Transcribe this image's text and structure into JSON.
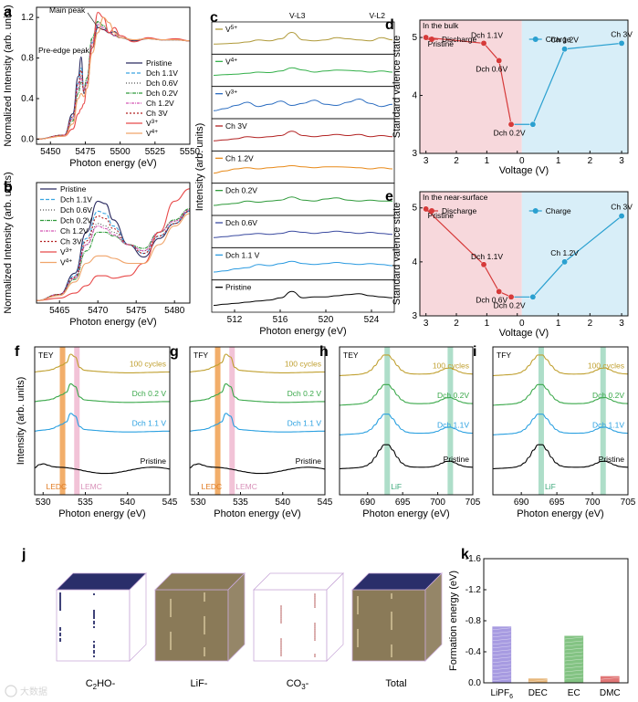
{
  "panel_labels": [
    "a",
    "b",
    "c",
    "d",
    "e",
    "f",
    "g",
    "h",
    "i",
    "j",
    "k"
  ],
  "chart_data": [
    {
      "id": "a",
      "type": "line",
      "xlabel": "Photon energy (eV)",
      "ylabel": "Normalized Intensity (arb. units)",
      "xlim": [
        5440,
        5550
      ],
      "ylim": [
        -0.05,
        1.3
      ],
      "xticks": [
        5450,
        5475,
        5500,
        5525,
        5550
      ],
      "yticks": [
        0.0,
        0.4,
        0.8,
        1.2
      ],
      "annotations": [
        "Main peak",
        "Pre-edge peak"
      ],
      "legend": [
        "Pristine",
        "Dch 1.1V",
        "Dch 0.6V",
        "Dch 0.2V",
        "Ch 1.2V",
        "Ch 3V",
        "V3+",
        "V4+"
      ],
      "series": [
        {
          "name": "Pristine",
          "color": "#2a2a60",
          "dash": "",
          "x": [
            5440,
            5460,
            5466,
            5470,
            5472,
            5474,
            5476,
            5480,
            5484,
            5488,
            5492,
            5496,
            5500,
            5510,
            5520,
            5530,
            5540,
            5550
          ],
          "y": [
            0.0,
            0.04,
            0.25,
            0.62,
            0.81,
            0.45,
            0.5,
            0.9,
            1.1,
            1.08,
            1.05,
            1.06,
            1.0,
            0.97,
            0.99,
            0.98,
            0.98,
            0.97
          ]
        },
        {
          "name": "Dch 1.1V",
          "color": "#3aa5e0",
          "dash": "4,2",
          "x": [
            5440,
            5460,
            5466,
            5470,
            5472,
            5474,
            5476,
            5480,
            5484,
            5488,
            5492,
            5496,
            5500,
            5510,
            5520,
            5530,
            5540,
            5550
          ],
          "y": [
            0.0,
            0.04,
            0.22,
            0.55,
            0.7,
            0.48,
            0.55,
            0.95,
            1.12,
            1.1,
            1.05,
            1.02,
            1.0,
            0.98,
            0.99,
            0.98,
            0.98,
            0.97
          ]
        },
        {
          "name": "Dch 0.6V",
          "color": "#555555",
          "dash": "1,2",
          "x": [
            5440,
            5460,
            5466,
            5470,
            5472,
            5474,
            5476,
            5480,
            5484,
            5488,
            5492,
            5496,
            5500,
            5510,
            5520,
            5530,
            5540,
            5550
          ],
          "y": [
            0.0,
            0.04,
            0.2,
            0.5,
            0.62,
            0.5,
            0.58,
            0.98,
            1.15,
            1.12,
            1.05,
            1.02,
            1.0,
            0.98,
            0.99,
            0.98,
            0.98,
            0.97
          ]
        },
        {
          "name": "Dch 0.2V",
          "color": "#2e9a3a",
          "dash": "4,1,1,1",
          "x": [
            5440,
            5460,
            5466,
            5470,
            5472,
            5474,
            5476,
            5480,
            5484,
            5488,
            5492,
            5496,
            5500,
            5510,
            5520,
            5530,
            5540,
            5550
          ],
          "y": [
            0.0,
            0.04,
            0.18,
            0.45,
            0.56,
            0.5,
            0.6,
            1.0,
            1.16,
            1.12,
            1.05,
            1.02,
            1.0,
            0.98,
            0.99,
            0.98,
            0.98,
            0.97
          ]
        },
        {
          "name": "Ch 1.2V",
          "color": "#d456b5",
          "dash": "3,1,1,1",
          "x": [
            5440,
            5460,
            5466,
            5470,
            5472,
            5474,
            5476,
            5480,
            5484,
            5488,
            5492,
            5496,
            5500,
            5510,
            5520,
            5530,
            5540,
            5550
          ],
          "y": [
            0.0,
            0.04,
            0.2,
            0.5,
            0.6,
            0.48,
            0.56,
            0.96,
            1.13,
            1.1,
            1.05,
            1.02,
            1.0,
            0.98,
            0.99,
            0.98,
            0.98,
            0.97
          ]
        },
        {
          "name": "Ch 3V",
          "color": "#b22222",
          "dash": "2,2",
          "x": [
            5440,
            5460,
            5466,
            5470,
            5472,
            5474,
            5476,
            5480,
            5484,
            5488,
            5492,
            5496,
            5500,
            5510,
            5520,
            5530,
            5540,
            5550
          ],
          "y": [
            0.0,
            0.04,
            0.22,
            0.55,
            0.68,
            0.47,
            0.55,
            0.93,
            1.1,
            1.08,
            1.05,
            1.03,
            1.0,
            0.98,
            0.99,
            0.98,
            0.98,
            0.97
          ]
        },
        {
          "name": "V3+",
          "color": "#e84a4a",
          "dash": "",
          "x": [
            5440,
            5460,
            5466,
            5470,
            5472,
            5474,
            5476,
            5480,
            5484,
            5488,
            5492,
            5496,
            5500,
            5510,
            5520,
            5530,
            5540,
            5550
          ],
          "y": [
            0.0,
            0.03,
            0.1,
            0.25,
            0.3,
            0.35,
            0.5,
            0.9,
            1.25,
            1.2,
            1.05,
            1.1,
            1.02,
            0.96,
            1.0,
            0.98,
            0.99,
            0.97
          ]
        },
        {
          "name": "V4+",
          "color": "#f0a46a",
          "dash": "",
          "x": [
            5440,
            5460,
            5466,
            5470,
            5472,
            5474,
            5476,
            5480,
            5484,
            5488,
            5492,
            5496,
            5500,
            5510,
            5520,
            5530,
            5540,
            5550
          ],
          "y": [
            0.0,
            0.03,
            0.15,
            0.4,
            0.45,
            0.42,
            0.5,
            0.85,
            1.05,
            1.2,
            1.15,
            1.05,
            1.0,
            0.98,
            0.99,
            0.98,
            0.98,
            0.97
          ]
        }
      ]
    },
    {
      "id": "b",
      "type": "line",
      "xlabel": "Photon energy (eV)",
      "ylabel": "Normalized Intensity (arb. units)",
      "xlim": [
        5462,
        5482
      ],
      "ylim": [
        -0.02,
        0.95
      ],
      "xticks": [
        5465,
        5470,
        5475,
        5480
      ],
      "yticks": [],
      "legend": [
        "Pristine",
        "Dch 1.1V",
        "Dch 0.6V",
        "Dch 0.2V",
        "Ch 1.2V",
        "Ch 3V",
        "V3+",
        "V4+"
      ],
      "series": [
        {
          "name": "Pristine",
          "color": "#2a2a60",
          "dash": "",
          "x": [
            5462,
            5465,
            5467,
            5468.5,
            5470,
            5471,
            5472,
            5474,
            5476,
            5478,
            5480,
            5482
          ],
          "y": [
            0.0,
            0.05,
            0.22,
            0.55,
            0.8,
            0.78,
            0.65,
            0.45,
            0.35,
            0.5,
            0.62,
            0.72
          ]
        },
        {
          "name": "Dch 1.1V",
          "color": "#3aa5e0",
          "dash": "4,2",
          "x": [
            5462,
            5465,
            5467,
            5468.5,
            5470,
            5471,
            5472,
            5474,
            5476,
            5478,
            5480,
            5482
          ],
          "y": [
            0.0,
            0.05,
            0.2,
            0.5,
            0.72,
            0.7,
            0.6,
            0.45,
            0.38,
            0.52,
            0.62,
            0.72
          ]
        },
        {
          "name": "Dch 0.6V",
          "color": "#555555",
          "dash": "1,2",
          "x": [
            5462,
            5465,
            5467,
            5468.5,
            5470,
            5471,
            5472,
            5474,
            5476,
            5478,
            5480,
            5482
          ],
          "y": [
            0.0,
            0.05,
            0.18,
            0.45,
            0.62,
            0.6,
            0.55,
            0.45,
            0.4,
            0.55,
            0.64,
            0.73
          ]
        },
        {
          "name": "Dch 0.2V",
          "color": "#2e9a3a",
          "dash": "4,1,1,1",
          "x": [
            5462,
            5465,
            5467,
            5468.5,
            5470,
            5471,
            5472,
            5474,
            5476,
            5478,
            5480,
            5482
          ],
          "y": [
            0.0,
            0.05,
            0.17,
            0.4,
            0.55,
            0.55,
            0.52,
            0.45,
            0.42,
            0.55,
            0.65,
            0.74
          ]
        },
        {
          "name": "Ch 1.2V",
          "color": "#d456b5",
          "dash": "3,1,1,1",
          "x": [
            5462,
            5465,
            5467,
            5468.5,
            5470,
            5471,
            5472,
            5474,
            5476,
            5478,
            5480,
            5482
          ],
          "y": [
            0.0,
            0.05,
            0.18,
            0.45,
            0.6,
            0.58,
            0.53,
            0.45,
            0.4,
            0.55,
            0.64,
            0.73
          ]
        },
        {
          "name": "Ch 3V",
          "color": "#b22222",
          "dash": "2,2",
          "x": [
            5462,
            5465,
            5467,
            5468.5,
            5470,
            5471,
            5472,
            5474,
            5476,
            5478,
            5480,
            5482
          ],
          "y": [
            0.0,
            0.05,
            0.19,
            0.48,
            0.68,
            0.66,
            0.58,
            0.45,
            0.38,
            0.52,
            0.62,
            0.72
          ]
        },
        {
          "name": "V3+",
          "color": "#e84a4a",
          "dash": "",
          "x": [
            5462,
            5465,
            5467,
            5468.5,
            5470,
            5471,
            5472,
            5474,
            5476,
            5478,
            5480,
            5482
          ],
          "y": [
            0.0,
            0.02,
            0.06,
            0.12,
            0.2,
            0.2,
            0.18,
            0.2,
            0.3,
            0.55,
            0.8,
            0.9
          ]
        },
        {
          "name": "V4+",
          "color": "#f0a46a",
          "dash": "",
          "x": [
            5462,
            5465,
            5467,
            5468.5,
            5470,
            5471,
            5472,
            5474,
            5476,
            5478,
            5480,
            5482
          ],
          "y": [
            0.0,
            0.04,
            0.15,
            0.3,
            0.36,
            0.36,
            0.34,
            0.3,
            0.3,
            0.45,
            0.6,
            0.7
          ]
        }
      ]
    },
    {
      "id": "c",
      "type": "line",
      "xlabel": "Photon energy (eV)",
      "ylabel": "Intensity (arb. units)",
      "xlim": [
        510,
        526
      ],
      "xticks": [
        512,
        516,
        520,
        524
      ],
      "annotations": [
        "V-L3",
        "V-L2"
      ],
      "panels": [
        "V5+",
        "V4+",
        "V3+",
        "Ch 3V",
        "Ch 1.2V",
        "Dch 0.2V",
        "Dch 0.6V",
        "Dch 1.1 V",
        "Pristine"
      ],
      "colors": [
        "#b09a3a",
        "#34b04a",
        "#2a6cc0",
        "#b22222",
        "#e88a1a",
        "#2e9a3a",
        "#3a4aa0",
        "#2a9ae0",
        "#000000"
      ]
    },
    {
      "id": "d",
      "type": "line",
      "title": "In the bulk",
      "xlabel": "Voltage (V)",
      "ylabel": "Standard valence state",
      "xlim": [
        3.2,
        -0.2
      ],
      "ylim": [
        3,
        5.3
      ],
      "xticks": [
        3,
        2,
        1,
        0,
        1,
        2,
        3
      ],
      "yticks": [
        3,
        4,
        5
      ],
      "legend": [
        "Discharge",
        "Charge"
      ],
      "series": [
        {
          "name": "Discharge",
          "color": "#d63a3a",
          "points": [
            {
              "label": "Pristine",
              "v": 3.0,
              "y": 5.0
            },
            {
              "label": "Dch 1.1V",
              "v": 1.1,
              "y": 4.9
            },
            {
              "label": "Dch 0.6V",
              "v": 0.6,
              "y": 4.6
            },
            {
              "label": "Dch 0.2V",
              "v": 0.2,
              "y": 3.5
            }
          ]
        },
        {
          "name": "Charge",
          "color": "#2aa0d0",
          "points": [
            {
              "label": "Dch 0.2V",
              "v": 0.2,
              "y": 3.5
            },
            {
              "label": "Ch 1.2V",
              "v": 1.2,
              "y": 4.8
            },
            {
              "label": "Ch 3V",
              "v": 3.0,
              "y": 4.9
            }
          ]
        }
      ]
    },
    {
      "id": "e",
      "type": "line",
      "title": "In the near-surface",
      "xlabel": "Voltage (V)",
      "ylabel": "Standard valence state",
      "xlim": [
        3.2,
        -0.2
      ],
      "ylim": [
        3,
        5.3
      ],
      "xticks": [
        3,
        2,
        1,
        0,
        1,
        2,
        3
      ],
      "yticks": [
        3,
        4,
        5
      ],
      "legend": [
        "Discharge",
        "Charge"
      ],
      "series": [
        {
          "name": "Discharge",
          "color": "#d63a3a",
          "points": [
            {
              "label": "Pristine",
              "v": 3.0,
              "y": 4.98
            },
            {
              "label": "Dch 1.1V",
              "v": 1.1,
              "y": 3.95
            },
            {
              "label": "Dch 0.6V",
              "v": 0.6,
              "y": 3.45
            },
            {
              "label": "Dch 0.2V",
              "v": 0.2,
              "y": 3.35
            }
          ]
        },
        {
          "name": "Charge",
          "color": "#2aa0d0",
          "points": [
            {
              "label": "Dch 0.2V",
              "v": 0.2,
              "y": 3.35
            },
            {
              "label": "Ch 1.2V",
              "v": 1.2,
              "y": 4.0
            },
            {
              "label": "Ch 3V",
              "v": 3.0,
              "y": 4.85
            }
          ]
        }
      ]
    },
    {
      "id": "f",
      "type": "line",
      "tag": "TEY",
      "xlabel": "Photon energy (eV)",
      "ylabel": "Intensity (arb. units)",
      "xlim": [
        529,
        545
      ],
      "xticks": [
        530,
        535,
        540,
        545
      ],
      "bands": [
        {
          "label": "LEDC",
          "x": 532.3,
          "color": "#f0a050"
        },
        {
          "label": "LEMC",
          "x": 534.0,
          "color": "#f0b8d0"
        }
      ],
      "series": [
        "Pristine",
        "Dch 1.1 V",
        "Dch 0.2 V",
        "100 cycles"
      ]
    },
    {
      "id": "g",
      "type": "line",
      "tag": "TFY",
      "xlabel": "Photon energy (eV)",
      "xlim": [
        529,
        545
      ],
      "xticks": [
        530,
        535,
        540,
        545
      ],
      "bands": [
        {
          "label": "LEDC",
          "x": 532.3,
          "color": "#f0a050"
        },
        {
          "label": "LEMC",
          "x": 534.0,
          "color": "#f0b8d0"
        }
      ],
      "series": [
        "Pristine",
        "Dch 1.1 V",
        "Dch 0.2 V",
        "100 cycles"
      ]
    },
    {
      "id": "h",
      "type": "line",
      "tag": "TEY",
      "xlabel": "Photon energy (eV)",
      "xlim": [
        686,
        705
      ],
      "xticks": [
        690,
        695,
        700,
        705
      ],
      "bands": [
        {
          "label": "LiF",
          "x": 692.8,
          "color": "#a0d8c0"
        },
        {
          "label": "",
          "x": 701.8,
          "color": "#a0d8c0"
        }
      ],
      "series": [
        "Pristine",
        "Dch 1.1V",
        "Dch 0.2V",
        "100 cycles"
      ]
    },
    {
      "id": "i",
      "type": "line",
      "tag": "TFY",
      "xlabel": "Photon energy (eV)",
      "xlim": [
        686,
        705
      ],
      "xticks": [
        690,
        695,
        700,
        705
      ],
      "bands": [
        {
          "label": "LiF",
          "x": 692.8,
          "color": "#a0d8c0"
        },
        {
          "label": "",
          "x": 701.5,
          "color": "#a0d8c0"
        }
      ],
      "series": [
        "Pristine",
        "Dch 1.1V",
        "Dch 0.2V",
        "100 cycles"
      ]
    },
    {
      "id": "k",
      "type": "bar",
      "ylabel": "Formation energy (eV)",
      "ylim": [
        0,
        -1.6
      ],
      "yticks": [
        0.0,
        -0.4,
        -0.8,
        -1.2,
        -1.6
      ],
      "categories": [
        "LiPF6",
        "DEC",
        "EC",
        "DMC"
      ],
      "values": [
        -0.72,
        -0.05,
        -0.6,
        -0.08
      ],
      "colors": [
        "#8a7ad8",
        "#e0a050",
        "#5ab05a",
        "#d84a4a"
      ]
    }
  ],
  "panel_j": {
    "labels": [
      "C2HO-",
      "LiF-",
      "CO3-",
      "Total"
    ]
  },
  "watermark": "大数据"
}
